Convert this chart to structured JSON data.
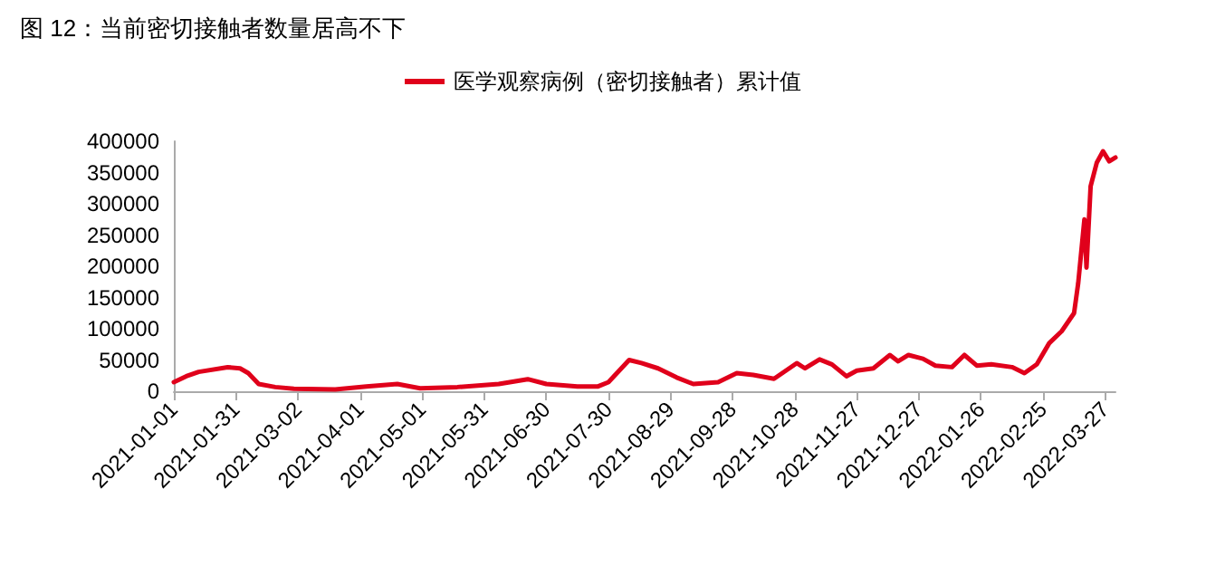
{
  "chart_data": {
    "type": "line",
    "title": "图 12：当前密切接触者数量居高不下",
    "x": [
      "2021-01-01",
      "2021-01-07",
      "2021-01-13",
      "2021-01-27",
      "2021-02-02",
      "2021-02-06",
      "2021-02-11",
      "2021-02-19",
      "2021-02-28",
      "2021-03-20",
      "2021-04-04",
      "2021-04-19",
      "2021-04-30",
      "2021-05-18",
      "2021-06-07",
      "2021-06-21",
      "2021-06-30",
      "2021-07-15",
      "2021-07-25",
      "2021-07-30",
      "2021-08-09",
      "2021-08-15",
      "2021-08-23",
      "2021-09-01",
      "2021-09-09",
      "2021-09-21",
      "2021-09-30",
      "2021-10-08",
      "2021-10-18",
      "2021-10-29",
      "2021-11-02",
      "2021-11-09",
      "2021-11-15",
      "2021-11-22",
      "2021-11-27",
      "2021-12-05",
      "2021-12-13",
      "2021-12-17",
      "2021-12-22",
      "2021-12-29",
      "2022-01-04",
      "2022-01-12",
      "2022-01-18",
      "2022-01-24",
      "2022-01-31",
      "2022-02-10",
      "2022-02-16",
      "2022-02-22",
      "2022-02-28",
      "2022-03-06",
      "2022-03-12",
      "2022-03-14",
      "2022-03-17",
      "2022-03-18",
      "2022-03-20",
      "2022-03-23",
      "2022-03-26",
      "2022-03-29",
      "2022-04-01"
    ],
    "series": [
      {
        "name": "医学观察病例（密切接触者）累计值",
        "color": "#e0001b",
        "values": [
          14500,
          24000,
          31000,
          38500,
          36600,
          29000,
          11600,
          6700,
          3900,
          2900,
          7700,
          11600,
          4800,
          6700,
          11600,
          19300,
          11600,
          7700,
          7700,
          14500,
          50000,
          45000,
          36600,
          22000,
          11600,
          14500,
          29000,
          26000,
          20000,
          45000,
          36600,
          51000,
          43000,
          24000,
          33000,
          36600,
          58000,
          48000,
          58000,
          52000,
          41000,
          38600,
          58000,
          41000,
          43000,
          38600,
          29000,
          43000,
          77000,
          96000,
          125000,
          173000,
          275000,
          198000,
          328000,
          366000,
          384000,
          368000,
          374000
        ]
      }
    ],
    "xlim": [
      "2021-01-01",
      "2022-04-01"
    ],
    "xticks": [
      "2021-01-01",
      "2021-01-31",
      "2021-03-02",
      "2021-04-01",
      "2021-05-01",
      "2021-05-31",
      "2021-06-30",
      "2021-07-30",
      "2021-08-29",
      "2021-09-28",
      "2021-10-28",
      "2021-11-27",
      "2021-12-27",
      "2022-01-26",
      "2022-02-25",
      "2022-03-27"
    ],
    "ylim": [
      0,
      400000
    ],
    "yticks": [
      0,
      50000,
      100000,
      150000,
      200000,
      250000,
      300000,
      350000,
      400000
    ],
    "grid": false,
    "legend": "top",
    "marker": "none",
    "line_style": "solid"
  }
}
